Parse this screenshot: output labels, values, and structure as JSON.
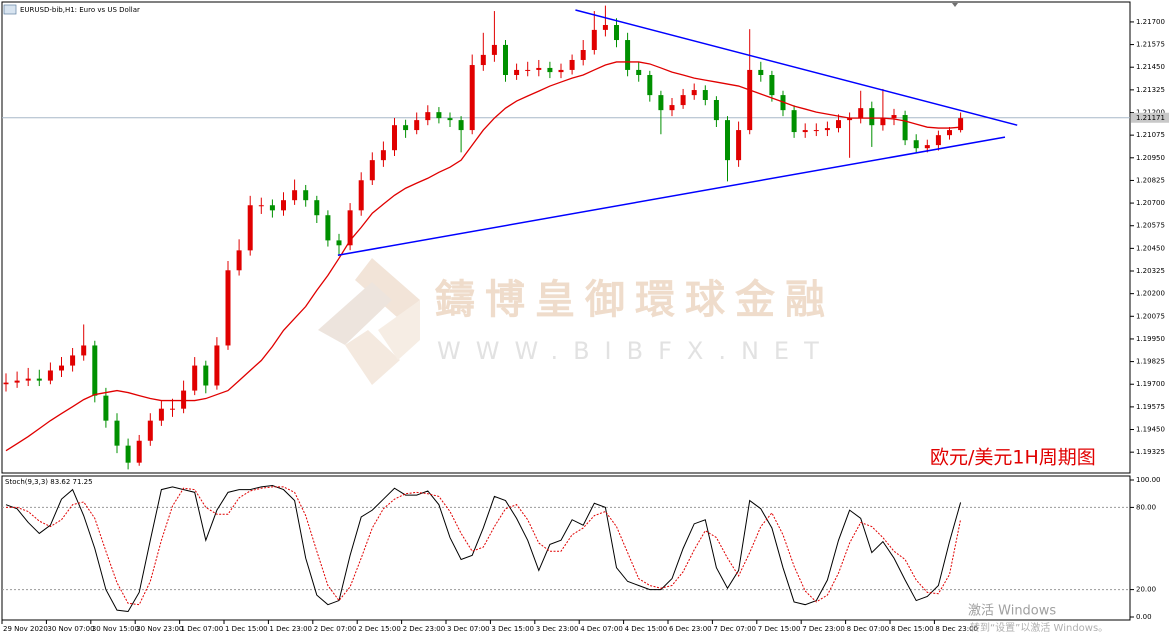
{
  "chart_data": [
    {
      "type": "candlestick",
      "title": "EURUSD-bib,H1:  Euro vs US Dollar",
      "annotation": "欧元/美元1H周期图",
      "categories": [
        "29 Nov 2020",
        null,
        null,
        null,
        "30 Nov 07:00",
        null,
        null,
        null,
        "30 Nov 15:00",
        null,
        null,
        null,
        "30 Nov 23:00",
        null,
        null,
        null,
        "1 Dec 07:00",
        null,
        null,
        null,
        "1 Dec 15:00",
        null,
        null,
        null,
        "1 Dec 23:00",
        null,
        null,
        null,
        "2 Dec 07:00",
        null,
        null,
        null,
        "2 Dec 15:00",
        null,
        null,
        null,
        "2 Dec 23:00",
        null,
        null,
        null,
        "3 Dec 07:00",
        null,
        null,
        null,
        "3 Dec 15:00",
        null,
        null,
        null,
        "3 Dec 23:00",
        null,
        null,
        null,
        "4 Dec 07:00",
        null,
        null,
        null,
        "4 Dec 15:00",
        null,
        null,
        null,
        "6 Dec 23:00",
        null,
        null,
        null,
        "7 Dec 07:00",
        null,
        null,
        null,
        "7 Dec 15:00",
        null,
        null,
        null,
        "7 Dec 23:00",
        null,
        null,
        null,
        "8 Dec 07:00",
        null,
        null,
        null,
        "8 Dec 15:00",
        null,
        null,
        null,
        "8 Dec 23:00",
        null,
        null
      ],
      "candles": [
        [
          1.197,
          1.1976,
          1.1966,
          1.19709
        ],
        [
          1.19709,
          1.1977,
          1.1968,
          1.1972
        ],
        [
          1.1972,
          1.1979,
          1.1969,
          1.19731
        ],
        [
          1.19731,
          1.1978,
          1.1969,
          1.1972
        ],
        [
          1.1972,
          1.1982,
          1.197,
          1.19776
        ],
        [
          1.19776,
          1.1985,
          1.1974,
          1.19803
        ],
        [
          1.19803,
          1.199,
          1.1977,
          1.19859
        ],
        [
          1.19859,
          1.2003,
          1.1983,
          1.19914
        ],
        [
          1.19914,
          1.1994,
          1.196,
          1.19637
        ],
        [
          1.19637,
          1.1968,
          1.1946,
          1.19499
        ],
        [
          1.19499,
          1.1954,
          1.1932,
          1.19361
        ],
        [
          1.19361,
          1.194,
          1.1923,
          1.19267
        ],
        [
          1.19267,
          1.1942,
          1.1925,
          1.19388
        ],
        [
          1.19388,
          1.1954,
          1.1936,
          1.19499
        ],
        [
          1.19499,
          1.1961,
          1.1947,
          1.19565
        ],
        [
          1.19565,
          1.1962,
          1.1952,
          1.19565
        ],
        [
          1.19565,
          1.1972,
          1.1954,
          1.19665
        ],
        [
          1.19665,
          1.1985,
          1.1964,
          1.19803
        ],
        [
          1.19803,
          1.1983,
          1.1965,
          1.19693
        ],
        [
          1.19693,
          1.1996,
          1.1967,
          1.19914
        ],
        [
          1.19914,
          1.2038,
          1.1989,
          1.20329
        ],
        [
          1.20329,
          1.205,
          1.203,
          1.20439
        ],
        [
          1.20439,
          1.2074,
          1.2041,
          1.20688
        ],
        [
          1.20688,
          1.2073,
          1.2064,
          1.20688
        ],
        [
          1.20688,
          1.2072,
          1.2062,
          1.2066
        ],
        [
          1.2066,
          1.2076,
          1.2063,
          1.20716
        ],
        [
          1.20716,
          1.2083,
          1.2069,
          1.20771
        ],
        [
          1.20771,
          1.208,
          1.2068,
          1.20716
        ],
        [
          1.20716,
          1.2074,
          1.2059,
          1.20633
        ],
        [
          1.20633,
          1.2066,
          1.2046,
          1.20494
        ],
        [
          1.20494,
          1.2053,
          1.2041,
          1.20467
        ],
        [
          1.20467,
          1.207,
          1.2044,
          1.2066
        ],
        [
          1.2066,
          1.2087,
          1.2063,
          1.20826
        ],
        [
          1.20826,
          1.2098,
          1.208,
          1.20937
        ],
        [
          1.20937,
          1.2104,
          1.209,
          1.20992
        ],
        [
          1.20992,
          1.2117,
          1.2096,
          1.2113
        ],
        [
          1.2113,
          1.2116,
          1.2106,
          1.21103
        ],
        [
          1.21103,
          1.212,
          1.2108,
          1.21158
        ],
        [
          1.21158,
          1.2124,
          1.2113,
          1.21202
        ],
        [
          1.21202,
          1.2123,
          1.2114,
          1.21169
        ],
        [
          1.21169,
          1.212,
          1.2112,
          1.21158
        ],
        [
          1.21158,
          1.2118,
          1.2098,
          1.21103
        ],
        [
          1.21103,
          1.2152,
          1.2108,
          1.21462
        ],
        [
          1.21462,
          1.2164,
          1.2143,
          1.21518
        ],
        [
          1.21518,
          1.2176,
          1.2148,
          1.21573
        ],
        [
          1.21573,
          1.216,
          1.2137,
          1.21407
        ],
        [
          1.21407,
          1.2147,
          1.2138,
          1.21435
        ],
        [
          1.21435,
          1.2148,
          1.214,
          1.21435
        ],
        [
          1.21435,
          1.2149,
          1.214,
          1.21446
        ],
        [
          1.21446,
          1.2148,
          1.2139,
          1.21423
        ],
        [
          1.21423,
          1.2147,
          1.2139,
          1.21435
        ],
        [
          1.21435,
          1.2152,
          1.2141,
          1.2149
        ],
        [
          1.2149,
          1.216,
          1.2146,
          1.21545
        ],
        [
          1.21545,
          1.2176,
          1.2152,
          1.21656
        ],
        [
          1.21656,
          1.2179,
          1.2162,
          1.21683
        ],
        [
          1.21683,
          1.2172,
          1.2156,
          1.216
        ],
        [
          1.216,
          1.2164,
          1.214,
          1.21435
        ],
        [
          1.21435,
          1.2148,
          1.2137,
          1.21407
        ],
        [
          1.21407,
          1.2143,
          1.2126,
          1.21296
        ],
        [
          1.21296,
          1.2132,
          1.2108,
          1.21213
        ],
        [
          1.21213,
          1.2128,
          1.2118,
          1.21241
        ],
        [
          1.21241,
          1.2133,
          1.2122,
          1.21296
        ],
        [
          1.21296,
          1.2136,
          1.2127,
          1.21324
        ],
        [
          1.21324,
          1.2135,
          1.2124,
          1.21269
        ],
        [
          1.21269,
          1.2129,
          1.2112,
          1.21158
        ],
        [
          1.21158,
          1.2118,
          1.2082,
          1.20937
        ],
        [
          1.20937,
          1.2115,
          1.209,
          1.21103
        ],
        [
          1.21103,
          1.2166,
          1.2108,
          1.21435
        ],
        [
          1.21435,
          1.2148,
          1.2137,
          1.21407
        ],
        [
          1.21407,
          1.2143,
          1.2126,
          1.21296
        ],
        [
          1.21296,
          1.2132,
          1.2118,
          1.21213
        ],
        [
          1.21213,
          1.2124,
          1.2106,
          1.21092
        ],
        [
          1.21092,
          1.2114,
          1.2106,
          1.21103
        ],
        [
          1.21103,
          1.2114,
          1.2107,
          1.21103
        ],
        [
          1.21103,
          1.2115,
          1.2107,
          1.21114
        ],
        [
          1.21114,
          1.2119,
          1.2109,
          1.21158
        ],
        [
          1.21158,
          1.212,
          1.2095,
          1.21169
        ],
        [
          1.21169,
          1.2132,
          1.2114,
          1.21224
        ],
        [
          1.21224,
          1.2126,
          1.2101,
          1.2113
        ],
        [
          1.2113,
          1.2133,
          1.211,
          1.21169
        ],
        [
          1.21169,
          1.2122,
          1.2113,
          1.21186
        ],
        [
          1.21186,
          1.2121,
          1.2102,
          1.21047
        ],
        [
          1.21047,
          1.2108,
          1.2098,
          1.21003
        ],
        [
          1.21003,
          1.2105,
          1.2098,
          1.2102
        ],
        [
          1.2102,
          1.211,
          1.2099,
          1.21075
        ],
        [
          1.21075,
          1.2112,
          1.2105,
          1.21103
        ],
        [
          1.21103,
          1.212,
          1.2109,
          1.21169
        ]
      ],
      "up_color": "#e00000",
      "down_color": "#009000",
      "series": [
        {
          "color": "#e00000",
          "values": [
            1.19333,
            1.19372,
            1.19411,
            1.19455,
            1.19499,
            1.19538,
            1.19576,
            1.19615,
            1.19643,
            1.19654,
            1.19665,
            1.19654,
            1.19637,
            1.19621,
            1.1961,
            1.1961,
            1.1961,
            1.1961,
            1.19621,
            1.19643,
            1.19665,
            1.1972,
            1.19776,
            1.19831,
            1.19908,
            1.19997,
            1.20063,
            1.20129,
            1.20218,
            1.20301,
            1.20395,
            1.20494,
            1.20566,
            1.20644,
            1.20694,
            1.20743,
            1.20782,
            1.2081,
            1.20837,
            1.2087,
            1.20898,
            1.20937,
            1.2102,
            1.21103,
            1.21169,
            1.21224,
            1.21263,
            1.21291,
            1.21318,
            1.21346,
            1.21368,
            1.2139,
            1.21407,
            1.21435,
            1.21462,
            1.21479,
            1.21479,
            1.21479,
            1.21468,
            1.21446,
            1.21423,
            1.21407,
            1.2139,
            1.21379,
            1.21368,
            1.21357,
            1.21346,
            1.21324,
            1.21302,
            1.2128,
            1.21258,
            1.21235,
            1.21219,
            1.21202,
            1.21191,
            1.2118,
            1.21169,
            1.21169,
            1.21169,
            1.21169,
            1.21164,
            1.21153,
            1.21136,
            1.21119,
            1.21114,
            1.21114,
            1.21119
          ]
        }
      ],
      "trendlines": [
        {
          "color": "#0000ff",
          "x": [
            51.3,
            91.1
          ],
          "y": [
            1.21766,
            1.2113
          ]
        },
        {
          "color": "#0000ff",
          "x": [
            29.9,
            90
          ],
          "y": [
            1.20412,
            1.21064
          ]
        }
      ],
      "current_price": 1.21171,
      "ylim": [
        1.1921,
        1.2181
      ],
      "yticks": [
        {
          "value": 1.217,
          "label": "1.21700"
        },
        {
          "value": 1.21575,
          "label": "1.21575"
        },
        {
          "value": 1.2145,
          "label": "1.21450"
        },
        {
          "value": 1.21325,
          "label": "1.21325"
        },
        {
          "value": 1.212,
          "label": "1.21200"
        },
        {
          "value": 1.21075,
          "label": "1.21075"
        },
        {
          "value": 1.2095,
          "label": "1.20950"
        },
        {
          "value": 1.20825,
          "label": "1.20825"
        },
        {
          "value": 1.207,
          "label": "1.20700"
        },
        {
          "value": 1.20575,
          "label": "1.20575"
        },
        {
          "value": 1.2045,
          "label": "1.20450"
        },
        {
          "value": 1.20325,
          "label": "1.20325"
        },
        {
          "value": 1.202,
          "label": "1.20200"
        },
        {
          "value": 1.20075,
          "label": "1.20075"
        },
        {
          "value": 1.1995,
          "label": "1.19950"
        },
        {
          "value": 1.19825,
          "label": "1.19825"
        },
        {
          "value": 1.197,
          "label": "1.19700"
        },
        {
          "value": 1.19575,
          "label": "1.19575"
        },
        {
          "value": 1.1945,
          "label": "1.19450"
        },
        {
          "value": 1.19325,
          "label": "1.19325"
        }
      ]
    },
    {
      "type": "line",
      "title": "Stoch(9,3,3) 83.62 71.25",
      "series": [
        {
          "color": "#000000",
          "dashed": false,
          "values": [
            82,
            79,
            69,
            61,
            67,
            86,
            93,
            74,
            50,
            20,
            5,
            4,
            18,
            56,
            93,
            95,
            93,
            91,
            56,
            78,
            91,
            93,
            93,
            95,
            96,
            93,
            85,
            43,
            16,
            9,
            12,
            45,
            73,
            78,
            86,
            94,
            89,
            89,
            92,
            82,
            58,
            42,
            45,
            65,
            88,
            85,
            72,
            56,
            34,
            53,
            56,
            71,
            67,
            83,
            80,
            36,
            26,
            23,
            20,
            20,
            28,
            50,
            68,
            71,
            36,
            21,
            34,
            85,
            79,
            65,
            36,
            11,
            9,
            12,
            27,
            56,
            78,
            72,
            47,
            55,
            43,
            27,
            12,
            15,
            23,
            55,
            83.62
          ]
        },
        {
          "color": "#e00000",
          "dashed": true,
          "values": [
            80,
            80,
            77,
            70,
            66,
            71,
            82,
            84,
            72,
            48,
            25,
            10,
            9,
            26,
            56,
            81,
            94,
            93,
            80,
            75,
            75,
            87,
            92,
            94,
            95,
            95,
            91,
            74,
            48,
            23,
            12,
            22,
            43,
            65,
            79,
            86,
            90,
            91,
            90,
            88,
            77,
            61,
            48,
            51,
            66,
            79,
            82,
            71,
            54,
            48,
            48,
            60,
            65,
            74,
            77,
            66,
            47,
            28,
            23,
            21,
            23,
            33,
            49,
            63,
            58,
            43,
            30,
            47,
            66,
            76,
            60,
            37,
            19,
            11,
            16,
            32,
            54,
            69,
            66,
            58,
            48,
            42,
            27,
            18,
            17,
            31,
            71.25
          ]
        }
      ],
      "levels": [
        80,
        20
      ],
      "ylim": [
        0,
        100
      ],
      "yticks": [
        {
          "value": 100,
          "label": "100.00"
        },
        {
          "value": 80,
          "label": "80.00"
        },
        {
          "value": 20,
          "label": "20.00"
        },
        {
          "value": 0,
          "label": "0.00"
        }
      ]
    }
  ],
  "watermark": {
    "brand": "鑄博皇御環球金融",
    "site": "WWW.BIBFX.NET"
  },
  "windows_notice": {
    "title": "激活 Windows",
    "hint": "转到“设置”以激活 Windows。"
  }
}
